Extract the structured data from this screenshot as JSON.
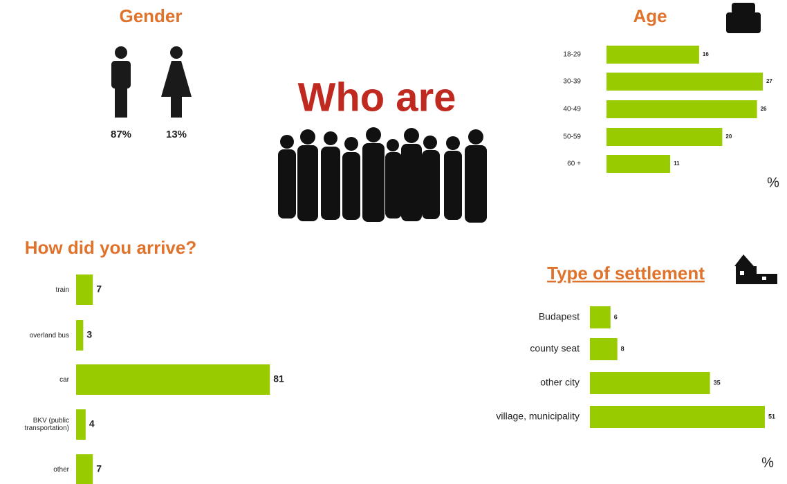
{
  "title": "Who are",
  "chart_data": [
    {
      "type": "icon",
      "title": "Gender",
      "values": [
        87,
        13
      ],
      "value_labels": [
        "87%",
        "13%"
      ],
      "color": "#1a1a1a"
    },
    {
      "type": "bar",
      "title": "Age",
      "categories": [
        "18-29",
        "30-39",
        "40-49",
        "50-59",
        "60 +"
      ],
      "values": [
        16,
        27,
        26,
        20,
        11
      ],
      "color": "#99cc00",
      "unit": "%"
    },
    {
      "type": "bar",
      "title": "How did you arrive?",
      "categories": [
        "train",
        "overland bus",
        "car",
        "BKV (public transportation)",
        "other"
      ],
      "values": [
        7,
        3,
        81,
        4,
        7
      ],
      "color": "#99cc00"
    },
    {
      "type": "bar",
      "title": "Type of settlement",
      "categories": [
        "Budapest",
        "county seat",
        "other city",
        "village, municipality"
      ],
      "values": [
        6,
        8,
        35,
        51
      ],
      "color": "#99cc00",
      "unit": "%"
    }
  ]
}
